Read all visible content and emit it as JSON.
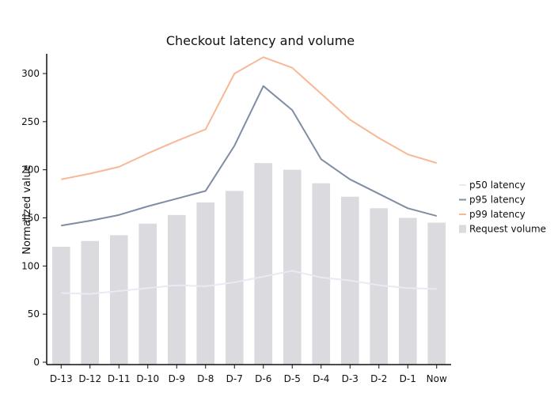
{
  "chart_data": {
    "type": "bar",
    "title": "Checkout latency and volume",
    "xlabel": "",
    "ylabel": "Normalized value",
    "categories": [
      "D-13",
      "D-12",
      "D-11",
      "D-10",
      "D-9",
      "D-8",
      "D-7",
      "D-6",
      "D-5",
      "D-4",
      "D-3",
      "D-2",
      "D-1",
      "Now"
    ],
    "ylim": [
      0,
      320
    ],
    "yticks": [
      0,
      50,
      100,
      150,
      200,
      250,
      300
    ],
    "grid": false,
    "legend_position": "right",
    "series": [
      {
        "name": "Request volume",
        "kind": "bar",
        "color": "#dadadf",
        "values": [
          120,
          126,
          132,
          144,
          153,
          166,
          178,
          207,
          200,
          186,
          172,
          160,
          150,
          145
        ]
      },
      {
        "name": "p50 latency",
        "kind": "line",
        "color": "#e8eaf4",
        "values": [
          72,
          71,
          74,
          77,
          80,
          79,
          83,
          89,
          95,
          88,
          85,
          80,
          77,
          76
        ]
      },
      {
        "name": "p95 latency",
        "kind": "line",
        "color": "#7f8da3",
        "values": [
          142,
          147,
          153,
          162,
          170,
          178,
          225,
          287,
          262,
          211,
          190,
          175,
          160,
          152
        ]
      },
      {
        "name": "p99 latency",
        "kind": "line",
        "color": "#f8b895",
        "values": [
          190,
          196,
          203,
          217,
          230,
          242,
          300,
          317,
          306,
          279,
          252,
          233,
          216,
          207
        ]
      }
    ],
    "legend": [
      "p50 latency",
      "p95 latency",
      "p99 latency",
      "Request volume"
    ]
  }
}
